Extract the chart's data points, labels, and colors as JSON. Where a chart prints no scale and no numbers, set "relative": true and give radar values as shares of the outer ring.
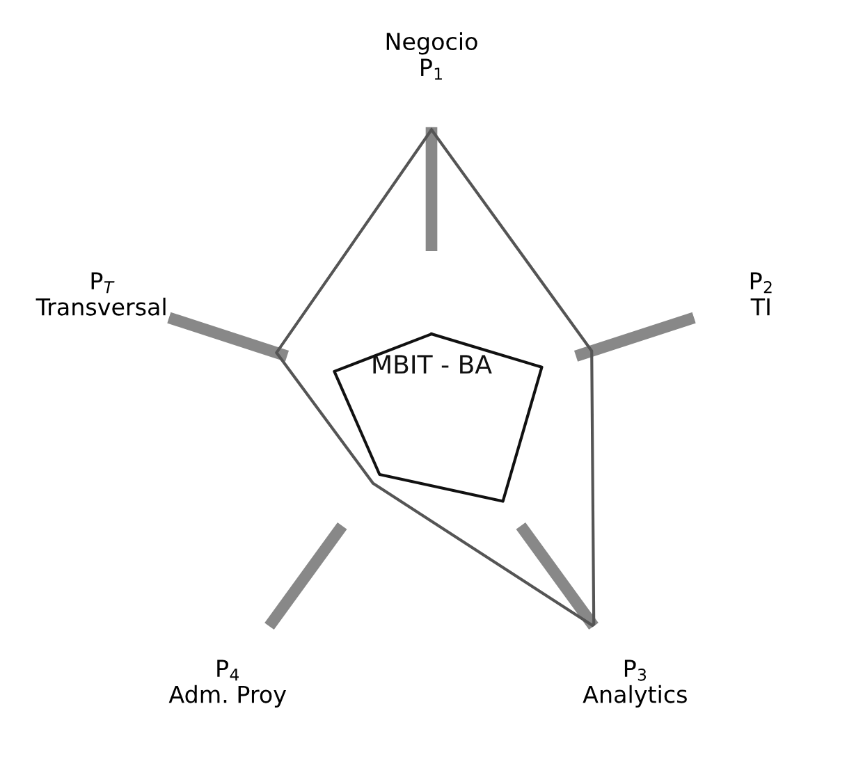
{
  "chart_data": {
    "type": "radar",
    "relative": true,
    "categories": [
      "Negocio\nP$_{1}$",
      "P$_{2}$\nTI",
      "P$_{3}$\nAnalytics",
      "P$_{4}$\nAdm. Proy",
      "P$_{T}$\nTransversal"
    ],
    "series": [
      {
        "color": "#555555",
        "values": [
          0.99,
          0.61,
          1.0,
          0.36,
          0.59
        ]
      },
      {
        "name": "MBIT - BA",
        "color": "#111111",
        "values": [
          0.25,
          0.42,
          0.44,
          0.32,
          0.37
        ]
      }
    ],
    "grid": false,
    "legend": false
  }
}
